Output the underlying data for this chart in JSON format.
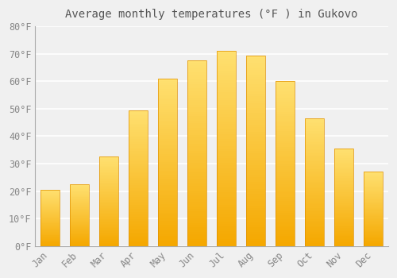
{
  "title": "Average monthly temperatures (°F ) in Gukovo",
  "months": [
    "Jan",
    "Feb",
    "Mar",
    "Apr",
    "May",
    "Jun",
    "Jul",
    "Aug",
    "Sep",
    "Oct",
    "Nov",
    "Dec"
  ],
  "values": [
    20.5,
    22.5,
    32.5,
    49.5,
    61,
    67.5,
    71,
    69.5,
    60,
    46.5,
    35.5,
    27
  ],
  "bar_color_bottom": "#F5A800",
  "bar_color_top": "#FFE070",
  "ylim": [
    0,
    80
  ],
  "yticks": [
    0,
    10,
    20,
    30,
    40,
    50,
    60,
    70,
    80
  ],
  "background_color": "#f0f0f0",
  "plot_bg_color": "#f0f0f0",
  "grid_color": "#ffffff",
  "title_fontsize": 10,
  "tick_fontsize": 8.5,
  "title_color": "#555555",
  "tick_color": "#888888"
}
